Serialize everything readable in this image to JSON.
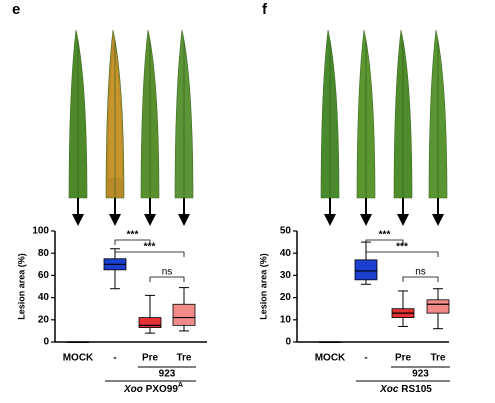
{
  "chart_data": [
    {
      "type": "box",
      "panel": "e",
      "ylabel": "Lesion area (%)",
      "categories": [
        "MOCK",
        "-",
        "Pre",
        "Tre"
      ],
      "boxes": [
        {
          "min": 0,
          "q1": 0,
          "median": 0,
          "q3": 0,
          "max": 0
        },
        {
          "min": 48,
          "q1": 65,
          "median": 70,
          "q3": 75,
          "max": 84
        },
        {
          "min": 8,
          "q1": 13,
          "median": 15,
          "q3": 22,
          "max": 42
        },
        {
          "min": 10,
          "q1": 15,
          "median": 22,
          "q3": 34,
          "max": 49
        }
      ],
      "colors": [
        "#000000",
        "#1c3fd0",
        "#e43232",
        "#f28a8a"
      ],
      "ylim": [
        0,
        100
      ],
      "yticks": [
        0,
        20,
        40,
        60,
        80,
        100
      ],
      "annotations": [
        "***",
        "***",
        "ns"
      ],
      "group_label": "923",
      "strain": {
        "genus": "Xoo",
        "name": "PXO99",
        "sup": "A"
      }
    },
    {
      "type": "box",
      "panel": "f",
      "ylabel": "Lesion area (%)",
      "categories": [
        "MOCK",
        "-",
        "Pre",
        "Tre"
      ],
      "boxes": [
        {
          "min": 0,
          "q1": 0,
          "median": 0,
          "q3": 0,
          "max": 0
        },
        {
          "min": 26,
          "q1": 28,
          "median": 32,
          "q3": 37,
          "max": 45
        },
        {
          "min": 7,
          "q1": 11,
          "median": 13,
          "q3": 15,
          "max": 23
        },
        {
          "min": 6,
          "q1": 13,
          "median": 17,
          "q3": 19,
          "max": 24
        }
      ],
      "colors": [
        "#000000",
        "#1c3fd0",
        "#e43232",
        "#f28a8a"
      ],
      "ylim": [
        0,
        50
      ],
      "yticks": [
        0,
        10,
        20,
        30,
        40,
        50
      ],
      "annotations": [
        "***",
        "***",
        "ns"
      ],
      "group_label": "923",
      "strain": {
        "genus": "Xoc",
        "name": "RS105"
      }
    }
  ]
}
